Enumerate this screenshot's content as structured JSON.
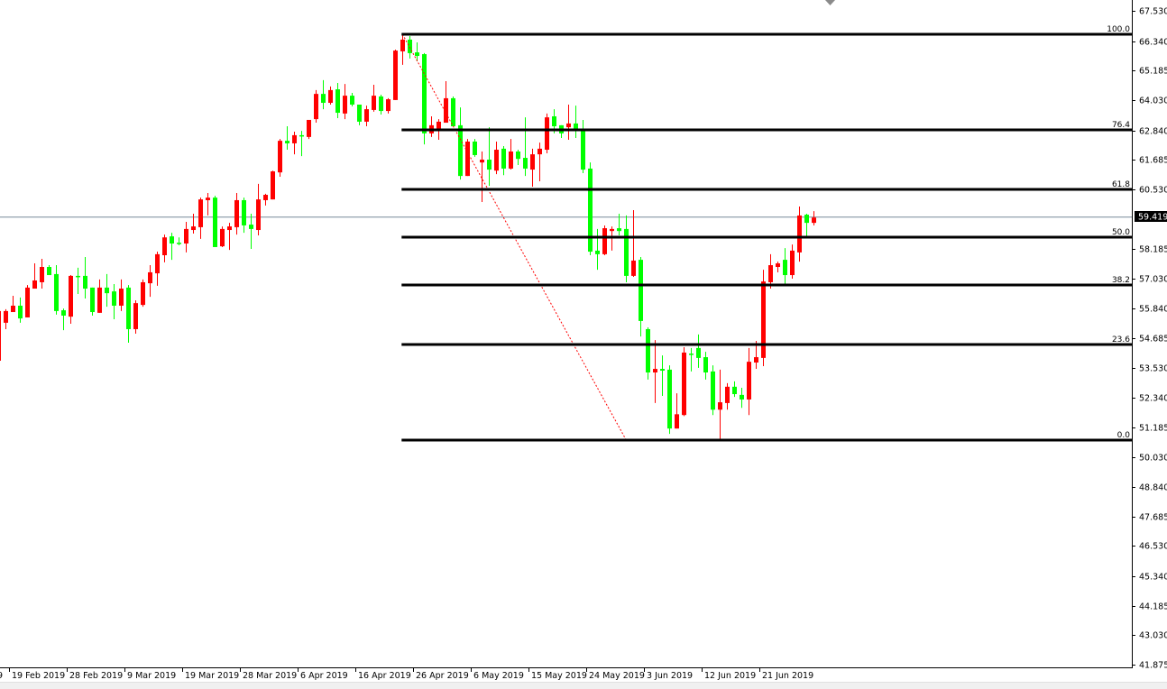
{
  "chart_data": {
    "type": "candlestick",
    "title": "",
    "colors": {
      "up": "#ff0000",
      "down": "#00ff00",
      "fib": "#000000",
      "trendline": "#ff0000",
      "price_line": "#778899",
      "price_tag_bg": "#000000"
    },
    "ylim": [
      41.875,
      67.53
    ],
    "y_ticks": [
      "67.530",
      "66.340",
      "65.185",
      "64.030",
      "62.840",
      "61.685",
      "60.530",
      "58.185",
      "57.030",
      "55.840",
      "54.685",
      "53.530",
      "52.340",
      "51.185",
      "50.030",
      "48.840",
      "47.685",
      "46.530",
      "45.340",
      "44.185",
      "43.030",
      "41.875"
    ],
    "x_tick_fragment": "9",
    "x_ticks": [
      "19 Feb 2019",
      "28 Feb 2019",
      "9 Mar 2019",
      "19 Mar 2019",
      "28 Mar 2019",
      "6 Apr 2019",
      "16 Apr 2019",
      "26 Apr 2019",
      "6 May 2019",
      "15 May 2019",
      "24 May 2019",
      "3 Jun 2019",
      "12 Jun 2019",
      "21 Jun 2019"
    ],
    "current_price": "59.419",
    "ohlc": [
      [
        53.8,
        55.82,
        53.8,
        55.75
      ],
      [
        55.29,
        55.82,
        55.04,
        55.75
      ],
      [
        55.71,
        56.35,
        55.71,
        55.96
      ],
      [
        55.96,
        56.28,
        55.29,
        55.46
      ],
      [
        55.5,
        56.77,
        55.5,
        56.67
      ],
      [
        56.63,
        57.62,
        56.63,
        56.95
      ],
      [
        56.88,
        57.8,
        56.63,
        57.48
      ],
      [
        57.48,
        57.55,
        57.16,
        57.16
      ],
      [
        57.2,
        57.55,
        55.61,
        55.75
      ],
      [
        55.78,
        55.85,
        55.0,
        55.57
      ],
      [
        55.53,
        57.16,
        55.25,
        57.13
      ],
      [
        57.13,
        57.45,
        56.42,
        57.09
      ],
      [
        57.13,
        57.87,
        56.24,
        56.63
      ],
      [
        56.67,
        56.67,
        55.57,
        55.71
      ],
      [
        55.68,
        56.99,
        55.68,
        56.67
      ],
      [
        56.67,
        57.2,
        55.92,
        56.45
      ],
      [
        56.52,
        56.81,
        55.43,
        55.96
      ],
      [
        55.96,
        56.99,
        55.75,
        56.63
      ],
      [
        56.67,
        56.77,
        54.51,
        55.04
      ],
      [
        55.04,
        56.17,
        54.86,
        56.06
      ],
      [
        55.99,
        56.99,
        55.92,
        56.88
      ],
      [
        56.84,
        57.55,
        56.31,
        57.27
      ],
      [
        57.23,
        58.08,
        56.74,
        57.98
      ],
      [
        57.94,
        58.75,
        57.66,
        58.64
      ],
      [
        58.68,
        58.82,
        57.76,
        58.4
      ],
      [
        58.43,
        58.64,
        58.33,
        58.4
      ],
      [
        58.4,
        59.25,
        58.05,
        58.97
      ],
      [
        58.93,
        59.57,
        58.79,
        59.07
      ],
      [
        59.04,
        60.2,
        58.58,
        60.13
      ],
      [
        60.1,
        60.38,
        59.5,
        60.2
      ],
      [
        60.2,
        60.27,
        58.26,
        58.26
      ],
      [
        58.29,
        59.07,
        58.26,
        58.97
      ],
      [
        58.93,
        59.21,
        58.15,
        59.07
      ],
      [
        59.04,
        60.38,
        58.75,
        60.1
      ],
      [
        60.1,
        60.2,
        58.82,
        59.11
      ],
      [
        59.14,
        59.57,
        58.19,
        58.97
      ],
      [
        58.93,
        60.74,
        58.72,
        60.13
      ],
      [
        60.1,
        60.35,
        59.89,
        60.31
      ],
      [
        60.13,
        61.26,
        60.13,
        61.23
      ],
      [
        61.19,
        62.5,
        61.02,
        62.43
      ],
      [
        62.43,
        63.0,
        62.08,
        62.33
      ],
      [
        62.33,
        62.79,
        61.9,
        62.65
      ],
      [
        62.65,
        62.82,
        61.83,
        62.61
      ],
      [
        62.58,
        63.25,
        62.5,
        63.25
      ],
      [
        63.28,
        64.42,
        63.14,
        64.27
      ],
      [
        64.27,
        64.81,
        63.67,
        63.92
      ],
      [
        63.92,
        64.56,
        63.85,
        64.42
      ],
      [
        64.45,
        64.7,
        63.32,
        63.53
      ],
      [
        63.5,
        64.66,
        63.28,
        64.2
      ],
      [
        64.2,
        64.31,
        63.78,
        63.85
      ],
      [
        63.85,
        63.85,
        63.04,
        63.18
      ],
      [
        63.18,
        63.81,
        63.0,
        63.67
      ],
      [
        63.64,
        64.63,
        63.57,
        64.2
      ],
      [
        64.17,
        64.24,
        63.46,
        63.6
      ],
      [
        63.6,
        64.1,
        63.5,
        64.06
      ],
      [
        64.03,
        66.01,
        64.03,
        65.97
      ],
      [
        65.94,
        66.61,
        65.41,
        66.4
      ],
      [
        66.4,
        66.54,
        65.66,
        65.87
      ],
      [
        65.9,
        66.29,
        65.55,
        65.76
      ],
      [
        65.83,
        65.87,
        62.29,
        62.72
      ],
      [
        62.72,
        63.39,
        62.58,
        63.04
      ],
      [
        62.89,
        63.28,
        62.47,
        63.18
      ],
      [
        63.14,
        64.77,
        63.14,
        64.1
      ],
      [
        64.1,
        64.17,
        63.0,
        63.0
      ],
      [
        63.04,
        63.74,
        60.91,
        61.05
      ],
      [
        61.05,
        62.5,
        61.05,
        62.4
      ],
      [
        62.4,
        62.5,
        61.8,
        61.87
      ],
      [
        61.58,
        62.01,
        60.03,
        61.69
      ],
      [
        61.69,
        62.96,
        60.66,
        61.3
      ],
      [
        61.26,
        62.4,
        61.12,
        62.08
      ],
      [
        62.12,
        62.22,
        61.08,
        61.34
      ],
      [
        61.34,
        62.5,
        61.3,
        62.01
      ],
      [
        62.01,
        62.08,
        61.48,
        61.72
      ],
      [
        61.76,
        63.35,
        61.05,
        61.34
      ],
      [
        61.3,
        62.12,
        60.63,
        61.9
      ],
      [
        61.9,
        62.36,
        60.84,
        62.12
      ],
      [
        62.08,
        63.5,
        61.94,
        63.35
      ],
      [
        63.39,
        63.67,
        62.72,
        63.0
      ],
      [
        63.04,
        63.04,
        62.54,
        62.72
      ],
      [
        62.96,
        63.85,
        62.47,
        63.11
      ],
      [
        63.11,
        63.81,
        62.54,
        62.89
      ],
      [
        62.86,
        63.25,
        61.16,
        61.3
      ],
      [
        61.34,
        61.58,
        57.94,
        58.08
      ],
      [
        58.12,
        58.97,
        57.37,
        57.98
      ],
      [
        57.98,
        59.11,
        57.94,
        59.0
      ],
      [
        58.89,
        59.07,
        58.12,
        58.97
      ],
      [
        59.0,
        59.57,
        58.72,
        58.89
      ],
      [
        58.97,
        59.5,
        56.88,
        57.13
      ],
      [
        57.13,
        59.71,
        57.09,
        57.73
      ],
      [
        57.76,
        57.87,
        54.75,
        55.36
      ],
      [
        55.04,
        55.11,
        53.06,
        53.34
      ],
      [
        53.34,
        54.61,
        52.14,
        53.48
      ],
      [
        53.48,
        54.01,
        52.42,
        53.41
      ],
      [
        53.45,
        53.62,
        50.93,
        51.14
      ],
      [
        51.14,
        52.52,
        51.14,
        51.7
      ],
      [
        51.67,
        54.33,
        51.63,
        54.12
      ],
      [
        54.08,
        54.3,
        53.38,
        54.05
      ],
      [
        54.3,
        54.83,
        53.52,
        53.91
      ],
      [
        53.94,
        54.15,
        53.06,
        53.34
      ],
      [
        53.38,
        53.62,
        51.67,
        51.88
      ],
      [
        51.88,
        53.45,
        50.69,
        52.17
      ],
      [
        52.14,
        52.92,
        51.88,
        52.78
      ],
      [
        52.78,
        52.99,
        52.38,
        52.49
      ],
      [
        52.46,
        52.74,
        51.95,
        52.28
      ],
      [
        52.28,
        54.3,
        51.67,
        53.76
      ],
      [
        53.73,
        54.58,
        53.48,
        53.94
      ],
      [
        53.91,
        57.37,
        53.59,
        56.91
      ],
      [
        56.88,
        57.98,
        56.63,
        57.55
      ],
      [
        57.48,
        57.69,
        57.27,
        57.62
      ],
      [
        57.76,
        58.22,
        56.81,
        57.16
      ],
      [
        57.16,
        58.36,
        57.02,
        58.12
      ],
      [
        58.05,
        59.85,
        57.69,
        59.5
      ],
      [
        59.53,
        59.57,
        58.68,
        59.21
      ],
      [
        59.21,
        59.67,
        59.11,
        59.419
      ]
    ],
    "fibonacci": {
      "high": 66.61,
      "low": 50.69,
      "levels": [
        {
          "ratio": 100.0,
          "label": "100.0"
        },
        {
          "ratio": 76.4,
          "label": "76.4"
        },
        {
          "ratio": 61.8,
          "label": "61.8"
        },
        {
          "ratio": 50.0,
          "label": "50.0"
        },
        {
          "ratio": 38.2,
          "label": "38.2"
        },
        {
          "ratio": 23.6,
          "label": "23.6"
        },
        {
          "ratio": 0.0,
          "label": "0.0"
        }
      ]
    },
    "grid": false,
    "legend": "none"
  }
}
